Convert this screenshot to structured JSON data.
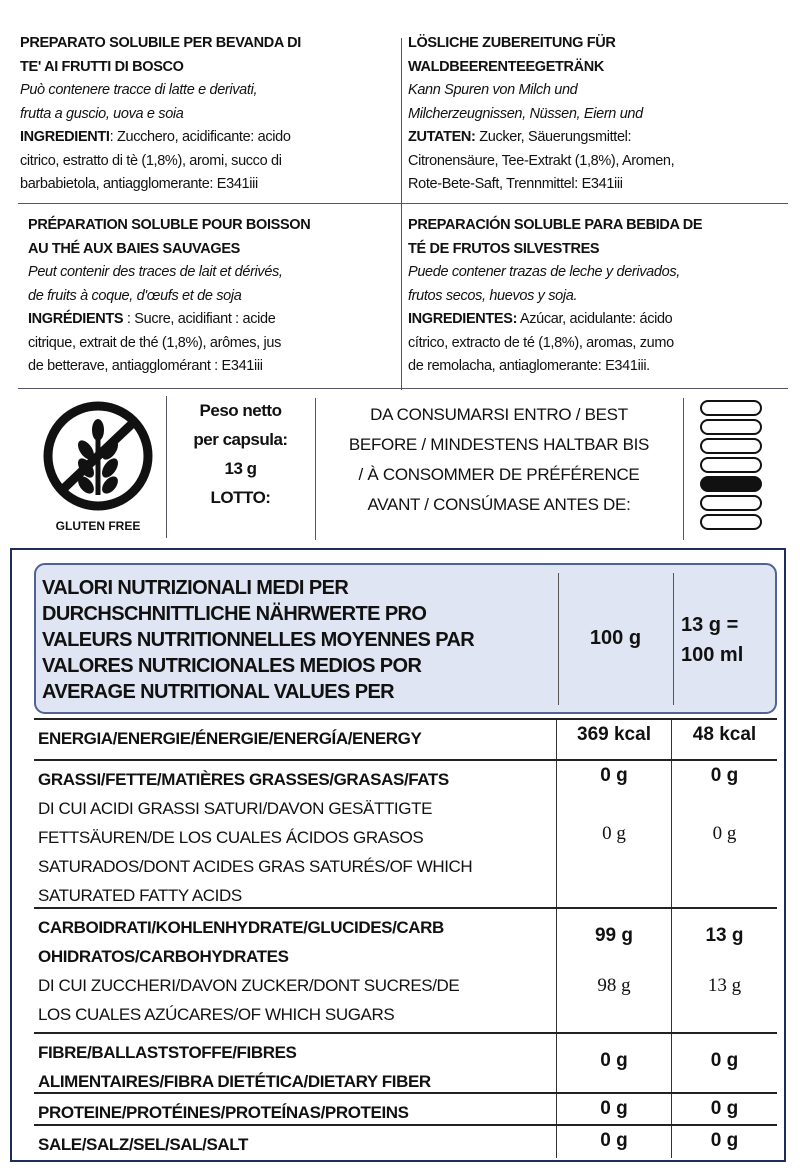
{
  "it": {
    "title": [
      "PREPARATO SOLUBILE PER BEVANDA DI",
      "TE' AI FRUTTI DI BOSCO"
    ],
    "allergens": [
      "Può contenere tracce di latte e derivati,",
      "frutta a guscio, uova e soia"
    ],
    "ing_label": "INGREDIENTI",
    "ing_lines": [
      ": Zucchero, acidificante: acido",
      "citrico, estratto di tè (1,8%), aromi, succo di",
      "barbabietola, antiagglomerante: E341iii"
    ]
  },
  "de": {
    "title": [
      "LÖSLICHE ZUBEREITUNG FÜR",
      "WALDBEERENTEEGETRÄNK"
    ],
    "allergens": [
      "Kann Spuren von Milch und",
      "Milcherzeugnissen, Nüssen, Eiern und"
    ],
    "ing_label": "ZUTATEN:",
    "ing_lines": [
      " Zucker, Säuerungsmittel:",
      "Citronensäure, Tee-Extrakt (1,8%), Aromen,",
      "Rote-Bete-Saft, Trennmittel: E341iii"
    ]
  },
  "fr": {
    "title": [
      "PRÉPARATION SOLUBLE POUR BOISSON",
      "AU THÉ AUX BAIES SAUVAGES"
    ],
    "allergens": [
      "Peut contenir des traces de lait et dérivés,",
      "de fruits à coque, d'œufs et de soja"
    ],
    "ing_label": "INGRÉDIENTS",
    "ing_lines": [
      " : Sucre, acidifiant : acide",
      "citrique, extrait de thé (1,8%), arômes, jus",
      "de betterave, antiagglomérant : E341iii"
    ]
  },
  "es": {
    "title": [
      "PREPARACIÓN SOLUBLE PARA BEBIDA DE",
      "TÉ DE FRUTOS SILVESTRES"
    ],
    "allergens": [
      "Puede contener trazas de leche y derivados,",
      "frutos secos, huevos y soja."
    ],
    "ing_label": "INGREDIENTES:",
    "ing_lines": [
      " Azúcar, acidulante: ácido",
      "cítrico, extracto de té (1,8%), aromas, zumo",
      "de remolacha, antiaglomerante: E341iii."
    ]
  },
  "gluten_free": {
    "label": "GLUTEN FREE",
    "icon": "crossed-wheat-icon"
  },
  "weight": {
    "lines": [
      "Peso netto",
      "per capsula:",
      "13 g",
      "LOTTO:"
    ]
  },
  "best_before": {
    "lines": [
      "DA CONSUMARSI ENTRO / BEST",
      "BEFORE / MINDESTENS HALTBAR BIS",
      "/ À CONSOMMER DE PRÉFÉRENCE",
      "AVANT / CONSÚMASE ANTES DE:"
    ]
  },
  "month_marker": {
    "count": 7,
    "selected_index": 4
  },
  "nutrition": {
    "header": [
      "VALORI NUTRIZIONALI MEDI PER",
      "DURCHSCHNITTLICHE NÄHRWERTE PRO",
      "VALEURS NUTRITIONNELLES MOYENNES PAR",
      "VALORES NUTRICIONALES MEDIOS POR",
      "AVERAGE NUTRITIONAL VALUES PER"
    ],
    "col1": "100 g",
    "col2": [
      "13 g =",
      "100 ml"
    ],
    "rows": [
      {
        "bold": [
          "ENERGIA/ENERGIE/ÉNERGIE/ENERGÍA/ENERGY"
        ],
        "sub": [],
        "v1": "369 kcal",
        "v2": "48 kcal"
      },
      {
        "bold": [
          "GRASSI/FETTE/MATIÈRES GRASSES/GRASAS/FATS"
        ],
        "sub": [
          "DI CUI ACIDI GRASSI SATURI/DAVON GESÄTTIGTE",
          "FETTSÄUREN/DE LOS CUALES ÁCIDOS GRASOS",
          "SATURADOS/DONT ACIDES GRAS SATURÉS/OF WHICH",
          "SATURATED FATTY ACIDS"
        ],
        "v1": "0 g",
        "v2": "0 g",
        "s1": "0 g",
        "s2": "0 g"
      },
      {
        "bold": [
          "CARBOIDRATI/KOHLENHYDRATE/GLUCIDES/CARB",
          "OHIDRATOS/CARBOHYDRATES"
        ],
        "sub": [
          "DI CUI ZUCCHERI/DAVON ZUCKER/DONT SUCRES/DE",
          "LOS CUALES AZÚCARES/OF WHICH SUGARS"
        ],
        "v1": "99 g",
        "v2": "13 g",
        "s1": "98 g",
        "s2": "13 g"
      },
      {
        "bold": [
          "FIBRE/BALLASTSTOFFE/FIBRES",
          "ALIMENTAIRES/FIBRA DIETÉTICA/DIETARY FIBER"
        ],
        "sub": [],
        "v1": "0 g",
        "v2": "0 g"
      },
      {
        "bold": [
          "PROTEINE/PROTÉINES/PROTEÍNAS/PROTEINS"
        ],
        "sub": [],
        "v1": "0 g",
        "v2": "0 g"
      },
      {
        "bold": [
          "SALE/SALZ/SEL/SAL/SALT"
        ],
        "sub": [],
        "v1": "0 g",
        "v2": "0 g"
      }
    ]
  }
}
